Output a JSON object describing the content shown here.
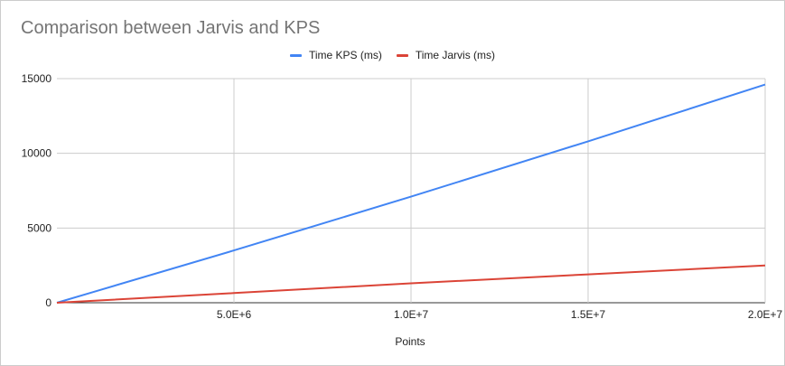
{
  "chart_data": {
    "type": "line",
    "title": "Comparison between Jarvis and KPS",
    "xlabel": "Points",
    "ylabel": "",
    "xlim": [
      0,
      20000000
    ],
    "ylim": [
      0,
      15000
    ],
    "x_ticks": [
      {
        "value": 5000000,
        "label": "5.0E+6"
      },
      {
        "value": 10000000,
        "label": "1.0E+7"
      },
      {
        "value": 15000000,
        "label": "1.5E+7"
      },
      {
        "value": 20000000,
        "label": "2.0E+7"
      }
    ],
    "y_ticks": [
      {
        "value": 0,
        "label": "0"
      },
      {
        "value": 5000,
        "label": "5000"
      },
      {
        "value": 10000,
        "label": "10000"
      },
      {
        "value": 15000,
        "label": "15000"
      }
    ],
    "grid": true,
    "legend_position": "top",
    "x": [
      0,
      1000000,
      5000000,
      10000000,
      15000000,
      20000000
    ],
    "series": [
      {
        "name": "Time KPS (ms)",
        "color": "#4285f4",
        "values": [
          0,
          700,
          3500,
          7100,
          10800,
          14600
        ]
      },
      {
        "name": "Time Jarvis (ms)",
        "color": "#db4437",
        "values": [
          0,
          130,
          650,
          1300,
          1900,
          2500
        ]
      }
    ]
  }
}
